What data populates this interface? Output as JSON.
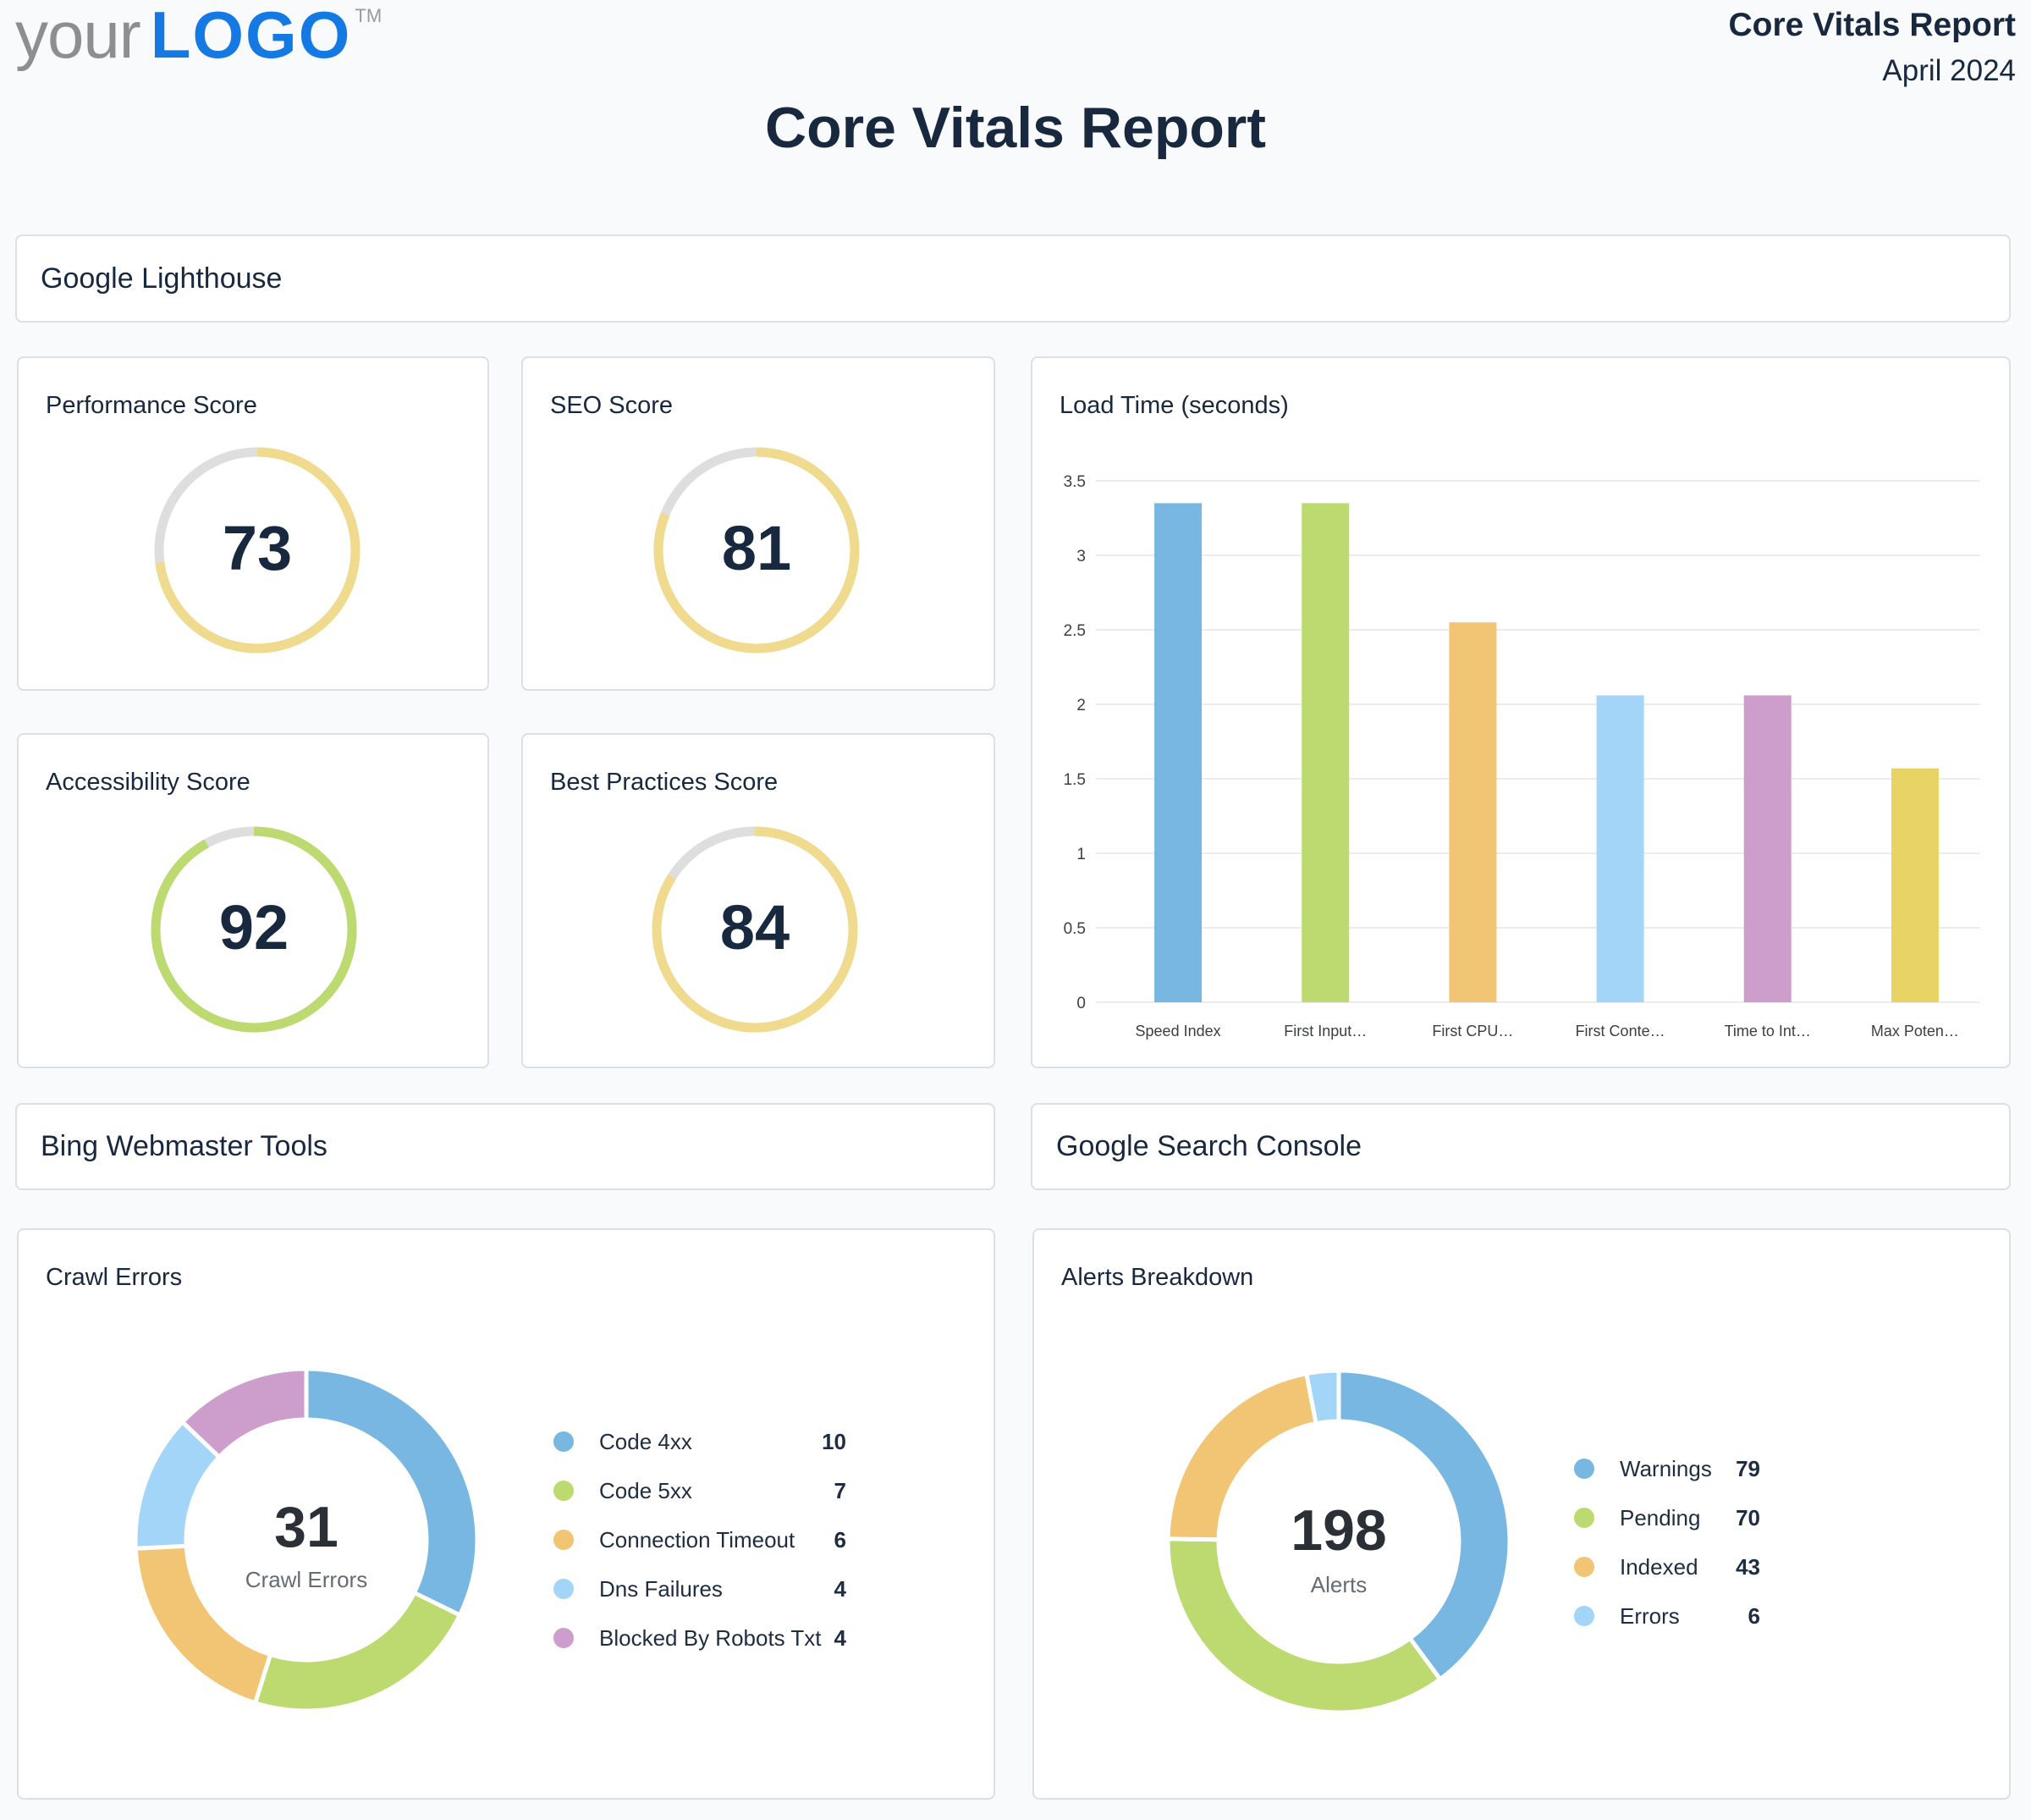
{
  "header": {
    "logo_your": "your",
    "logo_mark": "LOGO",
    "logo_tm": "TM",
    "report_title": "Core Vitals Report",
    "report_date": "April 2024",
    "page_title": "Core Vitals Report"
  },
  "sections": {
    "lighthouse": "Google Lighthouse",
    "bing": "Bing Webmaster Tools",
    "gsc": "Google Search Console"
  },
  "scores": [
    {
      "title": "Performance Score",
      "value": 73,
      "color": "#f0da8e"
    },
    {
      "title": "SEO Score",
      "value": 81,
      "color": "#f0da8e"
    },
    {
      "title": "Accessibility Score",
      "value": 92,
      "color": "#bcda6f"
    },
    {
      "title": "Best Practices Score",
      "value": 84,
      "color": "#f0da8e"
    }
  ],
  "chart_data": [
    {
      "type": "bar",
      "title": "Load Time (seconds)",
      "categories": [
        "Speed Index",
        "First Input…",
        "First CPU…",
        "First Conte…",
        "Time to Int…",
        "Max Poten…"
      ],
      "values": [
        3.35,
        3.35,
        2.55,
        2.06,
        2.06,
        1.57
      ],
      "colors": [
        "#77b7e1",
        "#bcda6f",
        "#f2c574",
        "#a2d5f8",
        "#cd9ecb",
        "#e8d365"
      ],
      "ylim": [
        0,
        3.5
      ],
      "yticks": [
        "0",
        "0.5",
        "1",
        "1.5",
        "2",
        "2.5",
        "3",
        "3.5"
      ],
      "grid": true
    },
    {
      "type": "pie",
      "title": "Crawl Errors",
      "center_value": "31",
      "center_label": "Crawl Errors",
      "slices": [
        {
          "label": "Code 4xx",
          "value": 10,
          "color": "#77b7e1"
        },
        {
          "label": "Code 5xx",
          "value": 7,
          "color": "#bcda6f"
        },
        {
          "label": "Connection Timeout",
          "value": 6,
          "color": "#f2c574"
        },
        {
          "label": "Dns Failures",
          "value": 4,
          "color": "#a2d5f8"
        },
        {
          "label": "Blocked By Robots Txt",
          "value": 4,
          "color": "#cd9ecb"
        }
      ]
    },
    {
      "type": "pie",
      "title": "Alerts Breakdown",
      "center_value": "198",
      "center_label": "Alerts",
      "slices": [
        {
          "label": "Warnings",
          "value": 79,
          "color": "#77b7e1"
        },
        {
          "label": "Pending",
          "value": 70,
          "color": "#bcda6f"
        },
        {
          "label": "Indexed",
          "value": 43,
          "color": "#f2c574"
        },
        {
          "label": "Errors",
          "value": 6,
          "color": "#a2d5f8"
        }
      ]
    }
  ]
}
